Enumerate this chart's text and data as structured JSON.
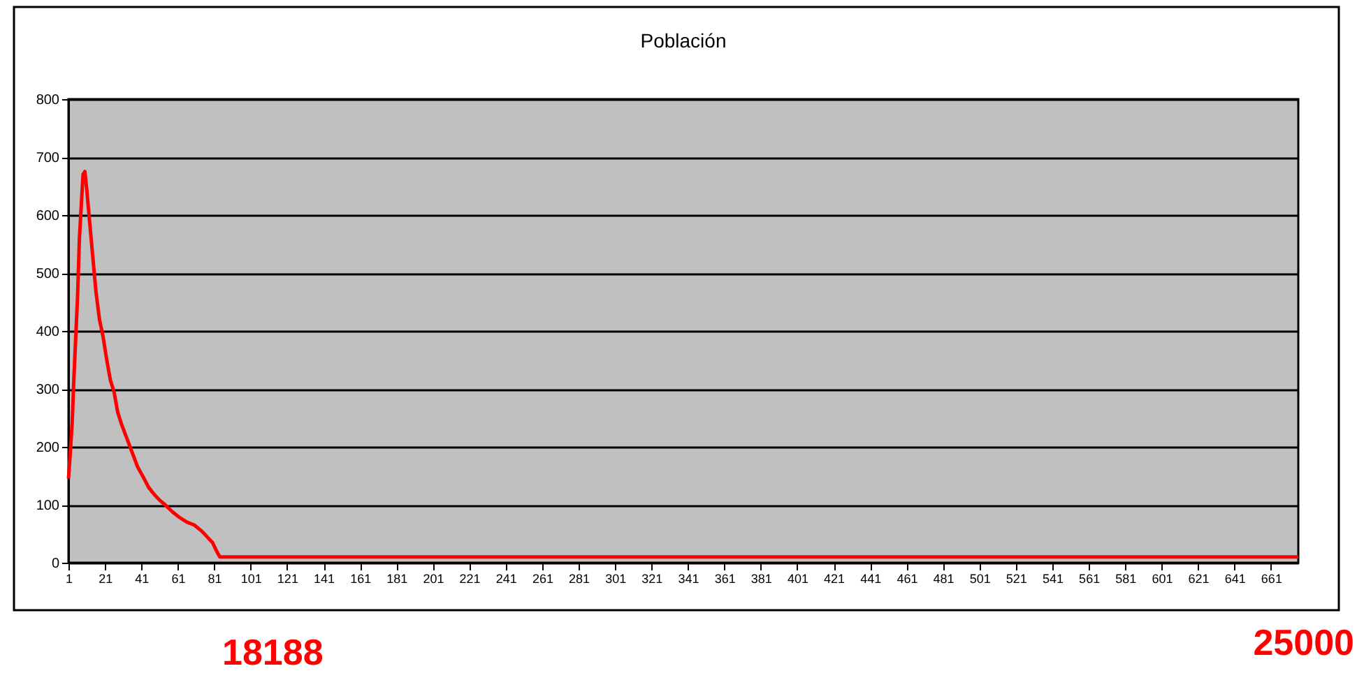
{
  "chart_data": {
    "type": "line",
    "title": "Población",
    "x": [
      1,
      2,
      3,
      4,
      5,
      6,
      7,
      8,
      9,
      10,
      11,
      12,
      14,
      16,
      18,
      20,
      22,
      24,
      26,
      28,
      30,
      33,
      36,
      39,
      42,
      45,
      48,
      51,
      54,
      58,
      62,
      66,
      70,
      74,
      77,
      80,
      82,
      84,
      100,
      200,
      300,
      400,
      500,
      600,
      676
    ],
    "series": [
      {
        "color": "#ff0000",
        "values": [
          145,
          190,
          240,
          320,
          390,
          460,
          560,
          615,
          670,
          675,
          645,
          610,
          540,
          470,
          420,
          390,
          350,
          315,
          295,
          260,
          240,
          215,
          190,
          165,
          148,
          130,
          118,
          108,
          100,
          88,
          78,
          70,
          65,
          55,
          45,
          35,
          22,
          10,
          10,
          10,
          10,
          10,
          10,
          10,
          10
        ]
      }
    ],
    "xlim": [
      1,
      676
    ],
    "xticks": [
      1,
      21,
      41,
      61,
      81,
      101,
      121,
      141,
      161,
      181,
      201,
      221,
      241,
      261,
      281,
      301,
      321,
      341,
      361,
      381,
      401,
      421,
      441,
      461,
      481,
      501,
      521,
      541,
      561,
      581,
      601,
      621,
      641,
      661
    ],
    "ylim": [
      0,
      800
    ],
    "yticks": [
      0,
      100,
      200,
      300,
      400,
      500,
      600,
      700,
      800
    ],
    "grid": "y",
    "legend": false,
    "marker": "none",
    "line_style": "solid",
    "annotations": [
      "18188",
      "25000"
    ]
  }
}
